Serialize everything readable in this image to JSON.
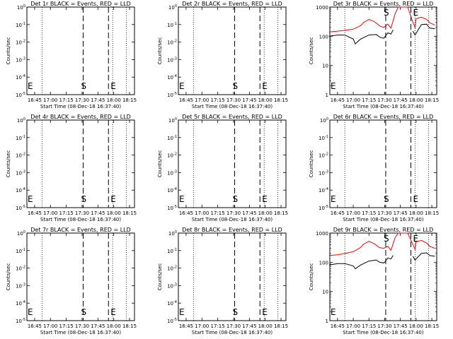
{
  "chart_data": [
    {
      "type": "line",
      "title": "Det 1r BLACK = Events, RED = LLD",
      "xlabel": "Start Time (08-Dec-18 16:37:40)",
      "ylabel": "Counts/sec",
      "x_ticks": [
        "16:45",
        "17:00",
        "17:15",
        "17:30",
        "17:45",
        "18:00",
        "18:15"
      ],
      "y_ticks": [
        "10^0",
        "10^-1",
        "10^-2",
        "10^-3",
        "10^-4",
        "10^-5"
      ],
      "y_scale": "log",
      "ylim": [
        1e-05,
        1
      ],
      "markers": [
        "E",
        "S",
        "E"
      ],
      "series": []
    },
    {
      "type": "line",
      "title": "Det 2r BLACK = Events, RED = LLD",
      "xlabel": "Start Time (08-Dec-18 16:37:40)",
      "ylabel": "Counts/sec",
      "x_ticks": [
        "16:45",
        "17:00",
        "17:15",
        "17:30",
        "17:45",
        "18:00",
        "18:15"
      ],
      "y_ticks": [
        "10^0",
        "10^-1",
        "10^-2",
        "10^-3",
        "10^-4",
        "10^-5"
      ],
      "y_scale": "log",
      "ylim": [
        1e-05,
        1
      ],
      "markers": [
        "E",
        "S",
        "E"
      ],
      "series": []
    },
    {
      "type": "line",
      "title": "Det 3r BLACK = Events, RED = LLD",
      "xlabel": "Start Time (08-Dec-18 16:37:40)",
      "ylabel": "Counts/sec",
      "x_ticks": [
        "16:45",
        "17:00",
        "17:15",
        "17:30",
        "17:45",
        "18:00",
        "18:15"
      ],
      "y_ticks": [
        "1000",
        "100",
        "10",
        "1"
      ],
      "y_scale": "log",
      "ylim": [
        1,
        1000
      ],
      "markers": [
        "E",
        "S",
        "E"
      ],
      "series": [
        {
          "color": "#ff0000",
          "x": [
            "16:37",
            "16:45",
            "16:52",
            "17:00",
            "17:07",
            "17:10",
            "17:15",
            "17:20",
            "17:25",
            "17:29",
            "17:33",
            "17:36",
            "17:40",
            "17:43",
            "17:45",
            "17:52",
            "17:57",
            "17:59",
            "18:00",
            "18:05",
            "18:10",
            "18:13",
            "18:18"
          ],
          "values": [
            140,
            150,
            160,
            175,
            230,
            300,
            380,
            320,
            230,
            200,
            260,
            190,
            600,
            1000,
            1000,
            1000,
            300,
            200,
            400,
            450,
            380,
            290,
            240
          ]
        },
        {
          "color": "#000000",
          "x": [
            "16:37",
            "16:45",
            "16:52",
            "17:00",
            "17:02",
            "17:07",
            "17:15",
            "17:22",
            "17:25",
            "17:29",
            "17:30",
            "17:33",
            "17:36",
            "17:38",
            "17:44",
            "17:46",
            "17:57",
            "17:59",
            "18:05",
            "18:10",
            "18:13",
            "18:18"
          ],
          "values": [
            100,
            110,
            110,
            80,
            55,
            80,
            110,
            115,
            95,
            85,
            95,
            130,
            120,
            165,
            null,
            null,
            150,
            110,
            250,
            260,
            190,
            180
          ]
        }
      ]
    },
    {
      "type": "line",
      "title": "Det 4r BLACK = Events, RED = LLD",
      "xlabel": "Start Time (08-Dec-18 16:37:40)",
      "ylabel": "Counts/sec",
      "x_ticks": [
        "16:45",
        "17:00",
        "17:15",
        "17:30",
        "17:45",
        "18:00",
        "18:15"
      ],
      "y_ticks": [
        "10^0",
        "10^-1",
        "10^-2",
        "10^-3",
        "10^-4",
        "10^-5"
      ],
      "y_scale": "log",
      "ylim": [
        1e-05,
        1
      ],
      "markers": [
        "E",
        "S",
        "E"
      ],
      "series": []
    },
    {
      "type": "line",
      "title": "Det 5r BLACK = Events, RED = LLD",
      "xlabel": "Start Time (08-Dec-18 16:37:40)",
      "ylabel": "Counts/sec",
      "x_ticks": [
        "16:45",
        "17:00",
        "17:15",
        "17:30",
        "17:45",
        "18:00",
        "18:15"
      ],
      "y_ticks": [
        "10^0",
        "10^-1",
        "10^-2",
        "10^-3",
        "10^-4",
        "10^-5"
      ],
      "y_scale": "log",
      "ylim": [
        1e-05,
        1
      ],
      "markers": [
        "E",
        "S",
        "E"
      ],
      "series": []
    },
    {
      "type": "line",
      "title": "Det 6r BLACK = Events, RED = LLD",
      "xlabel": "Start Time (08-Dec-18 16:37:40)",
      "ylabel": "Counts/sec",
      "x_ticks": [
        "16:45",
        "17:00",
        "17:15",
        "17:30",
        "17:45",
        "18:00",
        "18:15"
      ],
      "y_ticks": [
        "10^0",
        "10^-1",
        "10^-2",
        "10^-3",
        "10^-4",
        "10^-5"
      ],
      "y_scale": "log",
      "ylim": [
        1e-05,
        1
      ],
      "markers": [
        "E",
        "S",
        "E"
      ],
      "series": []
    },
    {
      "type": "line",
      "title": "Det 7r BLACK = Events, RED = LLD",
      "xlabel": "Start Time (08-Dec-18 16:37:40)",
      "ylabel": "Counts/sec",
      "x_ticks": [
        "16:45",
        "17:00",
        "17:15",
        "17:30",
        "17:45",
        "18:00",
        "18:15"
      ],
      "y_ticks": [
        "10^0",
        "10^-1",
        "10^-2",
        "10^-3",
        "10^-4",
        "10^-5"
      ],
      "y_scale": "log",
      "ylim": [
        1e-05,
        1
      ],
      "markers": [
        "E",
        "S",
        "E"
      ],
      "series": []
    },
    {
      "type": "line",
      "title": "Det 8r BLACK = Events, RED = LLD",
      "xlabel": "Start Time (08-Dec-18 16:37:40)",
      "ylabel": "Counts/sec",
      "x_ticks": [
        "16:45",
        "17:00",
        "17:15",
        "17:30",
        "17:45",
        "18:00",
        "18:15"
      ],
      "y_ticks": [
        "10^0",
        "10^-1",
        "10^-2",
        "10^-3",
        "10^-4",
        "10^-5"
      ],
      "y_scale": "log",
      "ylim": [
        1e-05,
        1
      ],
      "markers": [
        "E",
        "S",
        "E"
      ],
      "series": []
    },
    {
      "type": "line",
      "title": "Det 9r BLACK = Events, RED = LLD",
      "xlabel": "Start Time (08-Dec-18 16:37:40)",
      "ylabel": "Counts/sec",
      "x_ticks": [
        "16:45",
        "17:00",
        "17:15",
        "17:30",
        "17:45",
        "18:00",
        "18:15"
      ],
      "y_ticks": [
        "1000",
        "100",
        "10",
        "1"
      ],
      "y_scale": "log",
      "ylim": [
        1,
        1000
      ],
      "markers": [
        "E",
        "S",
        "E"
      ],
      "series": [
        {
          "color": "#ff0000",
          "x": [
            "16:37",
            "16:45",
            "16:52",
            "17:00",
            "17:07",
            "17:10",
            "17:15",
            "17:20",
            "17:25",
            "17:29",
            "17:33",
            "17:36",
            "17:40",
            "17:43",
            "17:45",
            "17:52",
            "17:57",
            "17:59",
            "18:00",
            "18:05",
            "18:10",
            "18:13",
            "18:18"
          ],
          "values": [
            170,
            180,
            200,
            230,
            320,
            420,
            520,
            430,
            320,
            300,
            350,
            260,
            700,
            1000,
            1000,
            1000,
            400,
            280,
            500,
            560,
            460,
            350,
            300
          ]
        },
        {
          "color": "#000000",
          "x": [
            "16:37",
            "16:45",
            "16:52",
            "17:00",
            "17:02",
            "17:07",
            "17:15",
            "17:22",
            "17:25",
            "17:29",
            "17:30",
            "17:33",
            "17:36",
            "17:38",
            "17:44",
            "17:46",
            "17:57",
            "17:59",
            "18:05",
            "18:10",
            "18:13",
            "18:18"
          ],
          "values": [
            80,
            90,
            90,
            75,
            60,
            80,
            110,
            120,
            100,
            95,
            100,
            140,
            130,
            170,
            null,
            null,
            160,
            120,
            200,
            210,
            170,
            160
          ]
        }
      ]
    }
  ]
}
